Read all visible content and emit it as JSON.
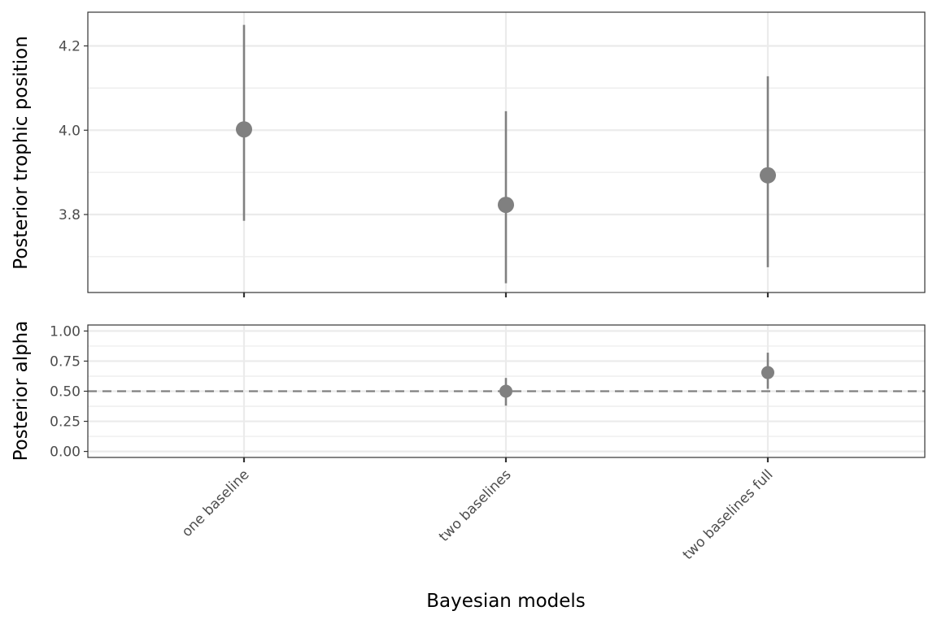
{
  "chart_data": [
    {
      "type": "pointrange",
      "ylabel": "Posterior trophic position",
      "categories": [
        "one baseline",
        "two baselines",
        "two baselines full"
      ],
      "ylim": [
        3.615,
        4.28
      ],
      "yticks": [
        "3.8",
        "4.0",
        "4.2"
      ],
      "ytick_values": [
        3.8,
        4.0,
        4.2
      ],
      "points": [
        {
          "category": "one baseline",
          "median": 4.002,
          "lower": 3.785,
          "upper": 4.25
        },
        {
          "category": "two baselines",
          "median": 3.823,
          "lower": 3.637,
          "upper": 4.045
        },
        {
          "category": "two baselines full",
          "median": 3.893,
          "lower": 3.675,
          "upper": 4.128
        }
      ],
      "grid": true
    },
    {
      "type": "pointrange",
      "ylabel": "Posterior alpha",
      "categories": [
        "one baseline",
        "two baselines",
        "two baselines full"
      ],
      "ylim": [
        -0.05,
        1.05
      ],
      "yticks": [
        "0.00",
        "0.25",
        "0.50",
        "0.75",
        "1.00"
      ],
      "ytick_values": [
        0,
        0.25,
        0.5,
        0.75,
        1.0
      ],
      "points": [
        {
          "category": "two baselines",
          "median": 0.5,
          "lower": 0.38,
          "upper": 0.61
        },
        {
          "category": "two baselines full",
          "median": 0.655,
          "lower": 0.52,
          "upper": 0.82
        }
      ],
      "hline": 0.5,
      "grid": true
    }
  ],
  "xlabel": "Bayesian models",
  "colors": {
    "point": "#808080",
    "grid": "#ebebeb",
    "border": "#333333",
    "hline": "#808080"
  }
}
